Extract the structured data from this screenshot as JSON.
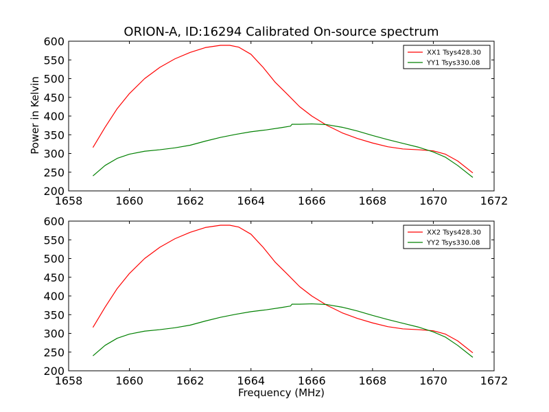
{
  "chart_data": [
    {
      "type": "line",
      "title": "ORION-A, ID:16294 Calibrated On-source spectrum",
      "xlabel": "",
      "ylabel": "Power in Kelvin",
      "xlim": [
        1658,
        1672
      ],
      "ylim": [
        200,
        600
      ],
      "xticks": [
        "1658",
        "1660",
        "1662",
        "1664",
        "1666",
        "1668",
        "1670",
        "1672"
      ],
      "yticks": [
        "200",
        "250",
        "300",
        "350",
        "400",
        "450",
        "500",
        "550",
        "600"
      ],
      "grid": false,
      "legend_position": "top-right",
      "series": [
        {
          "name": "XX1 Tsys428.30",
          "color": "#ff0000",
          "x": [
            1658.8,
            1659.2,
            1659.6,
            1660.0,
            1660.5,
            1661.0,
            1661.5,
            1662.0,
            1662.5,
            1663.0,
            1663.3,
            1663.6,
            1664.0,
            1664.4,
            1664.8,
            1665.2,
            1665.6,
            1666.0,
            1666.5,
            1667.0,
            1667.5,
            1668.0,
            1668.5,
            1669.0,
            1669.5,
            1670.0,
            1670.4,
            1670.8,
            1671.3
          ],
          "y": [
            316,
            370,
            420,
            460,
            500,
            530,
            553,
            570,
            583,
            589,
            589,
            584,
            565,
            530,
            490,
            458,
            425,
            400,
            375,
            355,
            340,
            328,
            318,
            312,
            310,
            307,
            298,
            280,
            248
          ]
        },
        {
          "name": "YY1 Tsys330.08",
          "color": "#008000",
          "x": [
            1658.8,
            1659.2,
            1659.6,
            1660.0,
            1660.5,
            1661.0,
            1661.5,
            1662.0,
            1662.5,
            1663.0,
            1663.5,
            1664.0,
            1664.5,
            1665.0,
            1665.3,
            1665.35,
            1665.6,
            1666.0,
            1666.5,
            1667.0,
            1667.5,
            1668.0,
            1668.5,
            1669.0,
            1669.5,
            1670.0,
            1670.4,
            1670.8,
            1671.3
          ],
          "y": [
            240,
            268,
            287,
            298,
            306,
            310,
            315,
            322,
            333,
            343,
            351,
            358,
            363,
            369,
            373,
            378,
            378,
            379,
            377,
            370,
            360,
            348,
            337,
            327,
            317,
            304,
            290,
            268,
            236
          ]
        }
      ]
    },
    {
      "type": "line",
      "title": "",
      "xlabel": "Frequency (MHz)",
      "ylabel": "",
      "xlim": [
        1658,
        1672
      ],
      "ylim": [
        200,
        600
      ],
      "xticks": [
        "1658",
        "1660",
        "1662",
        "1664",
        "1666",
        "1668",
        "1670",
        "1672"
      ],
      "yticks": [
        "200",
        "250",
        "300",
        "350",
        "400",
        "450",
        "500",
        "550",
        "600"
      ],
      "grid": false,
      "legend_position": "top-right",
      "series": [
        {
          "name": "XX2 Tsys428.30",
          "color": "#ff0000",
          "x": [
            1658.8,
            1659.2,
            1659.6,
            1660.0,
            1660.5,
            1661.0,
            1661.5,
            1662.0,
            1662.5,
            1663.0,
            1663.3,
            1663.6,
            1664.0,
            1664.4,
            1664.8,
            1665.2,
            1665.6,
            1666.0,
            1666.5,
            1667.0,
            1667.5,
            1668.0,
            1668.5,
            1669.0,
            1669.5,
            1670.0,
            1670.4,
            1670.8,
            1671.3
          ],
          "y": [
            316,
            370,
            420,
            460,
            500,
            530,
            553,
            570,
            583,
            589,
            589,
            584,
            565,
            530,
            490,
            458,
            425,
            400,
            375,
            355,
            340,
            328,
            318,
            312,
            310,
            307,
            298,
            280,
            248
          ]
        },
        {
          "name": "YY2 Tsys330.08",
          "color": "#008000",
          "x": [
            1658.8,
            1659.2,
            1659.6,
            1660.0,
            1660.5,
            1661.0,
            1661.5,
            1662.0,
            1662.5,
            1663.0,
            1663.5,
            1664.0,
            1664.5,
            1665.0,
            1665.3,
            1665.35,
            1665.6,
            1666.0,
            1666.5,
            1667.0,
            1667.5,
            1668.0,
            1668.5,
            1669.0,
            1669.5,
            1670.0,
            1670.4,
            1670.8,
            1671.3
          ],
          "y": [
            240,
            268,
            287,
            298,
            306,
            310,
            315,
            322,
            333,
            343,
            351,
            358,
            363,
            369,
            373,
            378,
            378,
            379,
            377,
            370,
            360,
            348,
            337,
            327,
            317,
            304,
            290,
            268,
            236
          ]
        }
      ]
    }
  ]
}
